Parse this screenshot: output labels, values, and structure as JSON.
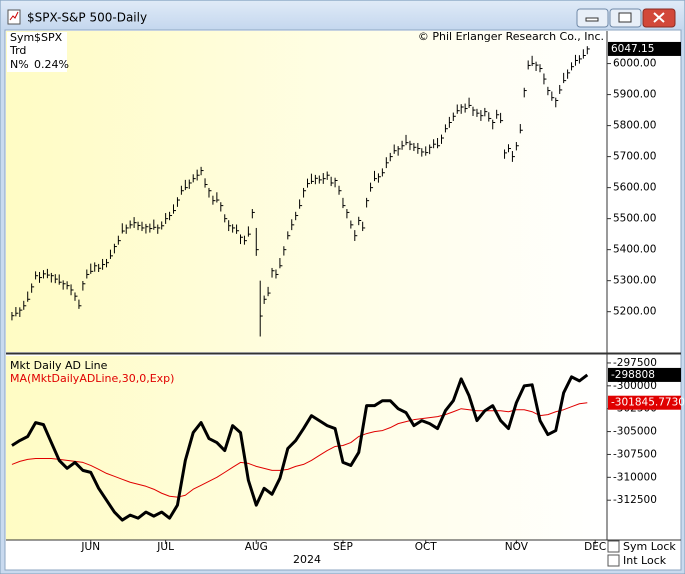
{
  "window": {
    "title": "$SPX-S&P 500-Daily"
  },
  "info": {
    "rows": [
      [
        "Sym",
        "$SPX"
      ],
      [
        "Trd"
      ],
      [
        "N%",
        "0.24%"
      ]
    ]
  },
  "copyright": "© Phil Erlanger Research Co., Inc.",
  "controls": {
    "checkboxes": [
      "Sym Lock",
      "Int Lock"
    ]
  },
  "chart_data": [
    {
      "type": "hlc",
      "name": "$SPX",
      "color": "#000000",
      "xlim": [
        -1,
        151
      ],
      "ylim": [
        5070,
        6105
      ],
      "yticks": [
        {
          "value": 5200,
          "label": "5200.00"
        },
        {
          "value": 5300,
          "label": "5300.00"
        },
        {
          "value": 5400,
          "label": "5400.00"
        },
        {
          "value": 5500,
          "label": "5500.00"
        },
        {
          "value": 5600,
          "label": "5600.00"
        },
        {
          "value": 5700,
          "label": "5700.00"
        },
        {
          "value": 5800,
          "label": "5800.00"
        },
        {
          "value": 5900,
          "label": "5900.00"
        },
        {
          "value": 6000,
          "label": "6000.00"
        }
      ],
      "high": [
        5199,
        5215,
        5214,
        5235,
        5265,
        5291,
        5330,
        5328,
        5334,
        5338,
        5325,
        5321,
        5320,
        5301,
        5298,
        5288,
        5262,
        5239,
        5299,
        5336,
        5355,
        5359,
        5354,
        5370,
        5370,
        5400,
        5419,
        5445,
        5485,
        5481,
        5494,
        5505,
        5490,
        5490,
        5483,
        5484,
        5497,
        5481,
        5491,
        5518,
        5522,
        5546,
        5569,
        5606,
        5625,
        5626,
        5643,
        5658,
        5667,
        5630,
        5599,
        5574,
        5585,
        5553,
        5514,
        5495,
        5482,
        5481,
        5449,
        5445,
        5475,
        5531,
        5470,
        5300,
        5252,
        5280,
        5341,
        5336,
        5373,
        5411,
        5459,
        5498,
        5522,
        5562,
        5599,
        5629,
        5645,
        5641,
        5639,
        5647,
        5652,
        5635,
        5632,
        5606,
        5567,
        5531,
        5494,
        5463,
        5506,
        5490,
        5567,
        5616,
        5654,
        5646,
        5662,
        5698,
        5712,
        5739,
        5734,
        5751,
        5770,
        5751,
        5744,
        5744,
        5727,
        5733,
        5739,
        5756,
        5760,
        5771,
        5804,
        5828,
        5842,
        5868,
        5869,
        5871,
        5890,
        5861,
        5854,
        5850,
        5857,
        5843,
        5819,
        5851,
        5841,
        5723,
        5740,
        5718,
        5747,
        5805,
        5922,
        6010,
        6025,
        6006,
        5998,
        5968,
        5925,
        5910,
        5890,
        5931,
        5970,
        5981,
        6004,
        6028,
        6027,
        6046,
        6056
      ],
      "low": [
        5172,
        5185,
        5183,
        5206,
        5232,
        5261,
        5304,
        5293,
        5307,
        5308,
        5294,
        5292,
        5287,
        5271,
        5272,
        5253,
        5235,
        5209,
        5268,
        5307,
        5322,
        5329,
        5328,
        5335,
        5343,
        5370,
        5388,
        5416,
        5452,
        5451,
        5468,
        5470,
        5463,
        5460,
        5452,
        5455,
        5464,
        5451,
        5465,
        5483,
        5495,
        5516,
        5538,
        5577,
        5592,
        5596,
        5617,
        5623,
        5640,
        5600,
        5568,
        5545,
        5552,
        5523,
        5488,
        5460,
        5455,
        5451,
        5418,
        5416,
        5442,
        5501,
        5380,
        5120,
        5225,
        5250,
        5310,
        5307,
        5340,
        5381,
        5433,
        5463,
        5495,
        5532,
        5568,
        5600,
        5612,
        5611,
        5613,
        5612,
        5625,
        5605,
        5601,
        5577,
        5534,
        5501,
        5468,
        5428,
        5479,
        5460,
        5536,
        5587,
        5621,
        5616,
        5636,
        5663,
        5685,
        5709,
        5703,
        5722,
        5737,
        5721,
        5718,
        5709,
        5700,
        5703,
        5708,
        5727,
        5727,
        5741,
        5778,
        5793,
        5815,
        5838,
        5838,
        5842,
        5857,
        5831,
        5828,
        5815,
        5830,
        5813,
        5788,
        5822,
        5808,
        5693,
        5714,
        5683,
        5720,
        5775,
        5891,
        5981,
        5992,
        5976,
        5972,
        5933,
        5898,
        5880,
        5859,
        5902,
        5937,
        5951,
        5978,
        5993,
        6000,
        6016,
        6030
      ],
      "close": [
        5187,
        5195,
        5205,
        5219,
        5240,
        5280,
        5316,
        5310,
        5322,
        5318,
        5316,
        5305,
        5295,
        5290,
        5284,
        5270,
        5250,
        5219,
        5290,
        5320,
        5330,
        5348,
        5340,
        5352,
        5358,
        5380,
        5410,
        5429,
        5460,
        5470,
        5480,
        5487,
        5478,
        5470,
        5474,
        5468,
        5472,
        5470,
        5477,
        5500,
        5510,
        5526,
        5560,
        5590,
        5600,
        5615,
        5629,
        5640,
        5655,
        5610,
        5590,
        5558,
        5560,
        5542,
        5500,
        5477,
        5470,
        5461,
        5440,
        5429,
        5450,
        5520,
        5400,
        5186,
        5240,
        5260,
        5332,
        5320,
        5348,
        5400,
        5445,
        5480,
        5510,
        5542,
        5590,
        5613,
        5620,
        5630,
        5625,
        5629,
        5640,
        5615,
        5623,
        5590,
        5542,
        5520,
        5480,
        5445,
        5494,
        5470,
        5558,
        5600,
        5629,
        5635,
        5648,
        5680,
        5700,
        5719,
        5725,
        5735,
        5745,
        5740,
        5730,
        5726,
        5715,
        5713,
        5730,
        5740,
        5735,
        5760,
        5790,
        5810,
        5830,
        5848,
        5860,
        5855,
        5865,
        5850,
        5840,
        5832,
        5845,
        5823,
        5810,
        5835,
        5816,
        5712,
        5726,
        5700,
        5735,
        5785,
        5913,
        5994,
        6000,
        5995,
        5984,
        5950,
        5913,
        5890,
        5881,
        5915,
        5945,
        5970,
        5990,
        6010,
        6015,
        6026,
        6047.15
      ]
    },
    {
      "type": "line",
      "xlim": [
        -1,
        151
      ],
      "ylim": [
        -316850,
        -296740
      ],
      "yticks": [
        -312500,
        -310000,
        -307500,
        -305000,
        -302500,
        -300000,
        -297500
      ],
      "xticks": [
        {
          "value": 20,
          "label": "JUN"
        },
        {
          "value": 39,
          "label": "JUL"
        },
        {
          "value": 62,
          "label": "AUG"
        },
        {
          "value": 84,
          "label": "SEP"
        },
        {
          "value": 105,
          "label": "OCT"
        },
        {
          "value": 128,
          "label": "NOV"
        },
        {
          "value": 148,
          "label": "DEC"
        }
      ],
      "xlabel": "2024",
      "x": [
        0,
        2,
        4,
        6,
        8,
        10,
        12,
        14,
        16,
        18,
        20,
        22,
        24,
        26,
        28,
        30,
        32,
        34,
        36,
        38,
        40,
        42,
        44,
        46,
        48,
        50,
        52,
        54,
        56,
        58,
        60,
        62,
        64,
        66,
        68,
        70,
        72,
        74,
        76,
        78,
        80,
        82,
        84,
        86,
        88,
        90,
        92,
        94,
        96,
        98,
        100,
        102,
        104,
        106,
        108,
        110,
        112,
        114,
        116,
        118,
        120,
        122,
        124,
        126,
        128,
        130,
        132,
        134,
        136,
        138,
        140,
        142,
        144,
        146
      ],
      "series": [
        {
          "name": "Mkt Daily AD Line",
          "color": "#000000",
          "width": 3,
          "values": [
            -306520,
            -305980,
            -305540,
            -304020,
            -304240,
            -306200,
            -308150,
            -309020,
            -308370,
            -309240,
            -309460,
            -311200,
            -312500,
            -313800,
            -314670,
            -314130,
            -314460,
            -313800,
            -314240,
            -313800,
            -314460,
            -313040,
            -308150,
            -305110,
            -304020,
            -305760,
            -306200,
            -307070,
            -304350,
            -305110,
            -310330,
            -313040,
            -311200,
            -311850,
            -310110,
            -306850,
            -305980,
            -304670,
            -303260,
            -303800,
            -304350,
            -304670,
            -308370,
            -308700,
            -307280,
            -302170,
            -302170,
            -301630,
            -301630,
            -302500,
            -302930,
            -304350,
            -303800,
            -304130,
            -304670,
            -302720,
            -301630,
            -299240,
            -301090,
            -303800,
            -302720,
            -302170,
            -303800,
            -304670,
            -301850,
            -300000,
            -299890,
            -303800,
            -305330,
            -304890,
            -300760,
            -299020,
            -299460,
            -298808
          ]
        },
        {
          "name": "MA(MktDailyADLine,30,0,Exp)",
          "color": "#e00000",
          "width": 1,
          "last_value_label": "-301845.7730",
          "values": [
            -308590,
            -308260,
            -308040,
            -307940,
            -307940,
            -307940,
            -308040,
            -308150,
            -308260,
            -308370,
            -308700,
            -309130,
            -309570,
            -309890,
            -310220,
            -310540,
            -310760,
            -310980,
            -311300,
            -311740,
            -312070,
            -312170,
            -311960,
            -311300,
            -310870,
            -310430,
            -310000,
            -309460,
            -308910,
            -308370,
            -308480,
            -308800,
            -309020,
            -309240,
            -309240,
            -309130,
            -308800,
            -308590,
            -308150,
            -307610,
            -307070,
            -306630,
            -306520,
            -306200,
            -305540,
            -305220,
            -305000,
            -304890,
            -304570,
            -304130,
            -303910,
            -303700,
            -303590,
            -303480,
            -303370,
            -303150,
            -302830,
            -302500,
            -302610,
            -302720,
            -302720,
            -302720,
            -302720,
            -302830,
            -302610,
            -302610,
            -302830,
            -303260,
            -303150,
            -302830,
            -302610,
            -302280,
            -301960,
            -301845.773
          ]
        }
      ]
    }
  ]
}
